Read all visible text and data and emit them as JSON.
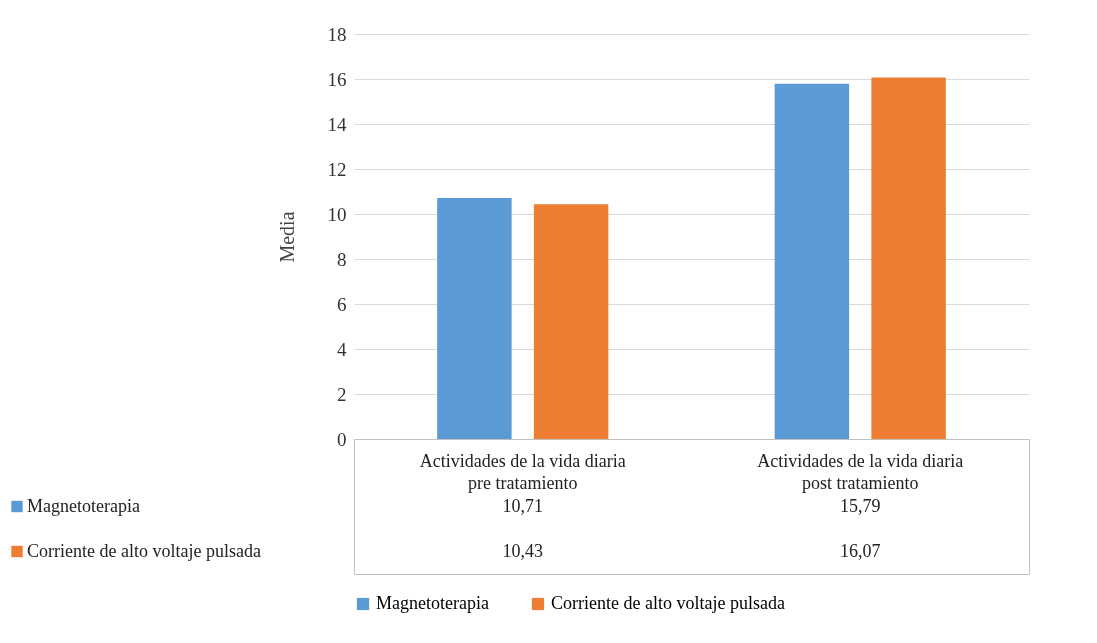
{
  "chart_data": {
    "type": "bar",
    "ylabel": "Media",
    "categories": [
      "Actividades de la vida diaria pre tratamiento",
      "Actividades de la vida diaria post tratamiento"
    ],
    "series": [
      {
        "name": "Magnetoterapia",
        "color": "#5b9bd5",
        "values": [
          10.71,
          15.79
        ],
        "value_labels": [
          "10,71",
          "15,79"
        ]
      },
      {
        "name": "Corriente de alto voltaje pulsada",
        "color": "#ed7d31",
        "values": [
          10.43,
          16.07
        ],
        "value_labels": [
          "10,43",
          "16,07"
        ]
      }
    ],
    "ylim": [
      0,
      18
    ],
    "yticks": [
      0,
      2,
      4,
      6,
      8,
      10,
      12,
      14,
      16,
      18
    ],
    "grid": "y",
    "legend": "bottom"
  }
}
